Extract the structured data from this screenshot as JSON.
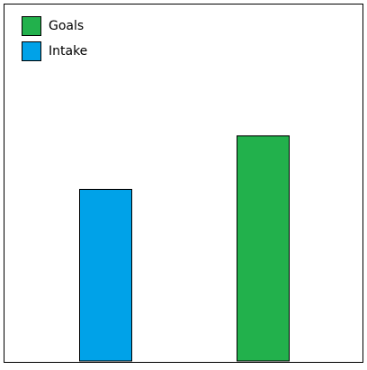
{
  "chart_data": {
    "type": "bar",
    "series": [
      {
        "name": "Intake",
        "color": "#00a2e8",
        "values": [
          48
        ]
      },
      {
        "name": "Goals",
        "color": "#22b14c",
        "values": [
          63
        ]
      }
    ],
    "ylim": [
      0,
      100
    ]
  }
}
